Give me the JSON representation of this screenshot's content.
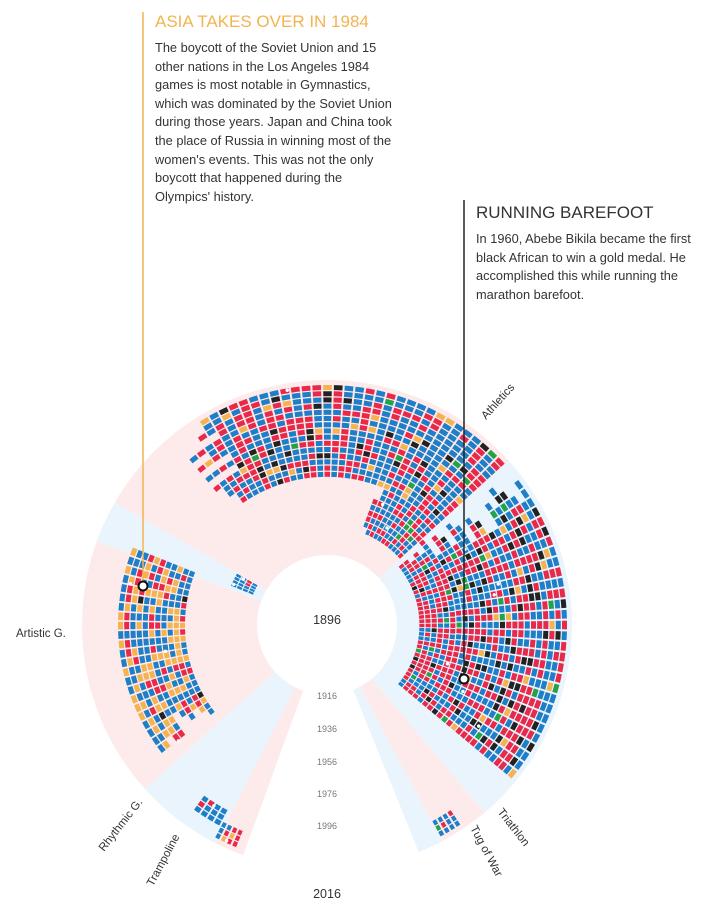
{
  "colors": {
    "asia": "#f4b350",
    "europe": "#1e7ec8",
    "africa": "#222222",
    "americas": "#e8294a",
    "oceania": "#22a34b",
    "background_wedge": "#fde7e7",
    "background_wedge_alt": "#e6f2fb",
    "annotation_1_accent": "#f4b350",
    "annotation_2_accent": "#333333"
  },
  "annotations": [
    {
      "title": "ASIA TAKES OVER IN 1984",
      "body": "The boycott of the Soviet Union and 15 other nations in the Los Angeles 1984 games is most notable in Gymnastics, which was dominated by the Soviet Union during those years. Japan and China took the place of Russia in winning most of the women's events. This was not the only boycott that happened during the Olympics' history."
    },
    {
      "title": "RUNNING BAREFOOT",
      "body": "In 1960, Abebe Bikila became the first black African to win a gold medal. He accomplished this while running the marathon barefoot."
    }
  ],
  "chart_data": {
    "type": "radial",
    "year_labels": [
      "1896",
      "1916",
      "1936",
      "1956",
      "1976",
      "1996",
      "2016"
    ],
    "sports": [
      {
        "name": "Athletics"
      },
      {
        "name": "Artistic G."
      },
      {
        "name": "Rhythmic G."
      },
      {
        "name": "Trampoline"
      },
      {
        "name": "Triathlon"
      },
      {
        "name": "Tug of War"
      }
    ]
  }
}
